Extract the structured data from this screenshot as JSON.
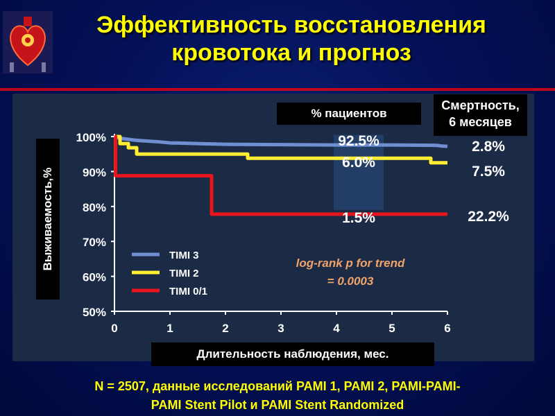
{
  "title": "Эффективность восстановления кровотока и прогноз",
  "percent_header": "% пациентов",
  "mortality_header_line1": "Смертность,",
  "mortality_header_line2": "6 месяцев",
  "footnote_line1": "N = 2507, данные исследований PAMI 1, PAMI 2, PAMI-PAMI-",
  "footnote_line2": "PAMI Stent Pilot и PAMI Stent Randomized",
  "chart_data": {
    "type": "line",
    "xlabel": "Длительность наблюдения, мес.",
    "ylabel": "Выживаемость,%",
    "xlim": [
      0,
      6
    ],
    "ylim": [
      50,
      100
    ],
    "x_ticks": [
      "0",
      "1",
      "2",
      "3",
      "4",
      "5",
      "6"
    ],
    "y_ticks": [
      "100%",
      "90%",
      "80%",
      "70%",
      "60%",
      "50%"
    ],
    "annotation_line1": "log-rank p for trend",
    "annotation_line2": "= 0.0003",
    "legend_position": "bottom-left",
    "series": [
      {
        "name": "TIMI 3",
        "color": "#6f8fd2",
        "x": [
          0,
          0.1,
          0.2,
          0.35,
          0.5,
          0.8,
          1.0,
          1.5,
          2.0,
          3.0,
          4.0,
          5.0,
          5.8,
          5.9,
          6.0
        ],
        "y": [
          100,
          99.5,
          99.3,
          99.0,
          98.8,
          98.5,
          98.2,
          98.0,
          97.8,
          97.7,
          97.6,
          97.6,
          97.5,
          97.3,
          97.2
        ],
        "percent_label": "92.5%",
        "mortality_label": "2.8%"
      },
      {
        "name": "TIMI 2",
        "color": "#ffee33",
        "x": [
          0,
          0.1,
          0.1,
          0.25,
          0.25,
          0.4,
          0.4,
          2.4,
          2.4,
          5.7,
          5.7,
          6.0
        ],
        "y": [
          100,
          100,
          98.0,
          98.0,
          96.8,
          96.8,
          95.0,
          95.0,
          93.8,
          93.8,
          92.5,
          92.5
        ],
        "percent_label": "6.0%",
        "mortality_label": "7.5%"
      },
      {
        "name": "TIMI 0/1",
        "color": "#e8161c",
        "x": [
          0,
          0.02,
          0.02,
          1.75,
          1.75,
          6.0
        ],
        "y": [
          100,
          100,
          88.8,
          88.8,
          77.8,
          77.8
        ],
        "percent_label": "1.5%",
        "mortality_label": "22.2%"
      }
    ]
  }
}
